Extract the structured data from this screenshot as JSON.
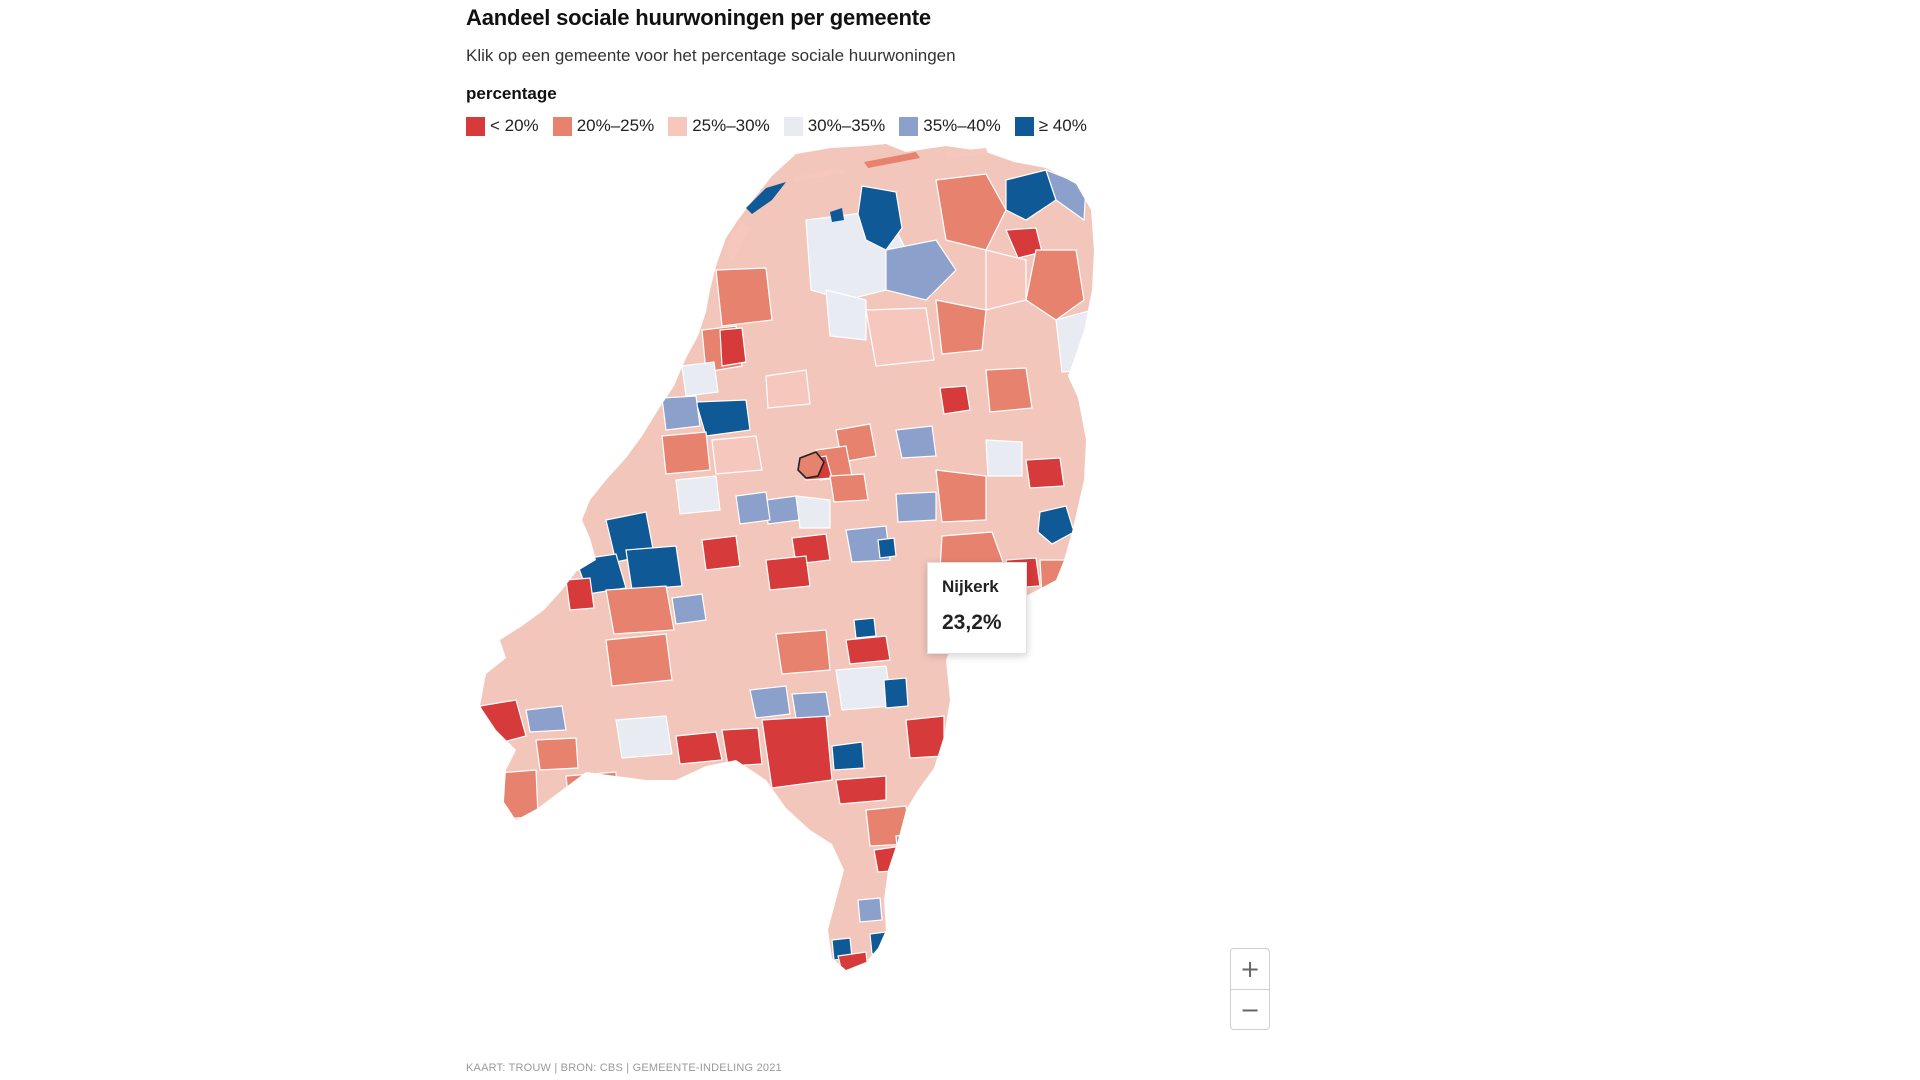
{
  "header": {
    "title": "Aandeel sociale huurwoningen per gemeente",
    "subtitle": "Klik op een gemeente voor het percentage sociale huurwoningen"
  },
  "legend": {
    "title": "percentage",
    "items": [
      {
        "label": "< 20%",
        "color": "#d63a3a"
      },
      {
        "label": "20%–25%",
        "color": "#e7826f"
      },
      {
        "label": "25%–30%",
        "color": "#f6c8bd"
      },
      {
        "label": "30%–35%",
        "color": "#e9ebf2"
      },
      {
        "label": "35%–40%",
        "color": "#8ba0cb"
      },
      {
        "label": "≥ 40%",
        "color": "#0f5a96"
      }
    ]
  },
  "tooltip": {
    "name": "Nijkerk",
    "value": "23,2%"
  },
  "zoom": {
    "in_icon": "plus-icon",
    "out_icon": "minus-icon"
  },
  "credit": "KAART: TROUW | BRON: CBS | GEMEENTE-INDELING 2021"
}
